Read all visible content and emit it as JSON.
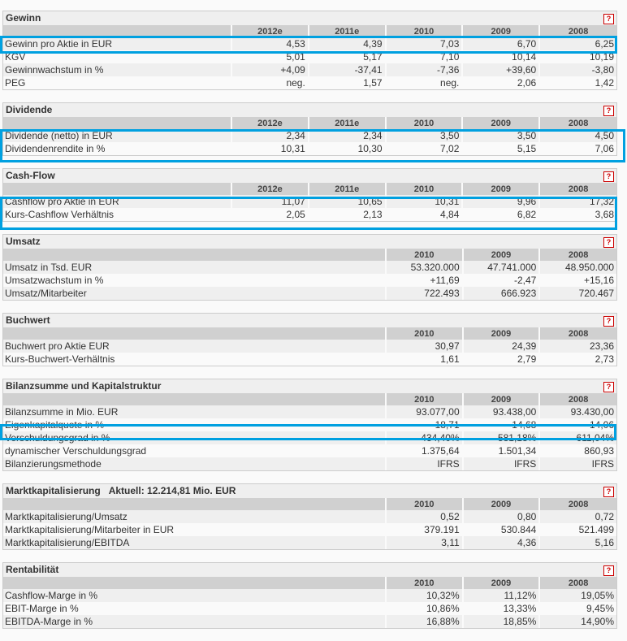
{
  "accent": "#00a0e0",
  "help_label": "?",
  "sections": [
    {
      "title": "Gewinn",
      "years": [
        "2012e",
        "2011e",
        "2010",
        "2009",
        "2008"
      ],
      "rows": [
        [
          "Gewinn pro Aktie in EUR",
          "4,53",
          "4,39",
          "7,03",
          "6,70",
          "6,25"
        ],
        [
          "KGV",
          "5,01",
          "5,17",
          "7,10",
          "10,14",
          "10,19"
        ],
        [
          "Gewinnwachstum in %",
          "+4,09",
          "-37,41",
          "-7,36",
          "+39,60",
          "-3,80"
        ],
        [
          "PEG",
          "neg.",
          "1,57",
          "neg.",
          "2,06",
          "1,42"
        ]
      ]
    },
    {
      "title": "Dividende",
      "years": [
        "2012e",
        "2011e",
        "2010",
        "2009",
        "2008"
      ],
      "rows": [
        [
          "Dividende (netto) in EUR",
          "2,34",
          "2,34",
          "3,50",
          "3,50",
          "4,50"
        ],
        [
          "Dividendenrendite in %",
          "10,31",
          "10,30",
          "7,02",
          "5,15",
          "7,06"
        ]
      ]
    },
    {
      "title": "Cash-Flow",
      "years": [
        "2012e",
        "2011e",
        "2010",
        "2009",
        "2008"
      ],
      "rows": [
        [
          "Cashflow pro Aktie in EUR",
          "11,07",
          "10,65",
          "10,31",
          "9,96",
          "17,32"
        ],
        [
          "Kurs-Cashflow Verhältnis",
          "2,05",
          "2,13",
          "4,84",
          "6,82",
          "3,68"
        ]
      ]
    },
    {
      "title": "Umsatz",
      "years": [
        "2010",
        "2009",
        "2008"
      ],
      "rows": [
        [
          "Umsatz in Tsd. EUR",
          "53.320.000",
          "47.741.000",
          "48.950.000"
        ],
        [
          "Umsatzwachstum in %",
          "+11,69",
          "-2,47",
          "+15,16"
        ],
        [
          "Umsatz/Mitarbeiter",
          "722.493",
          "666.923",
          "720.467"
        ]
      ]
    },
    {
      "title": "Buchwert",
      "years": [
        "2010",
        "2009",
        "2008"
      ],
      "rows": [
        [
          "Buchwert pro Aktie EUR",
          "30,97",
          "24,39",
          "23,36"
        ],
        [
          "Kurs-Buchwert-Verhältnis",
          "1,61",
          "2,79",
          "2,73"
        ]
      ]
    },
    {
      "title": "Bilanzsumme und Kapitalstruktur",
      "years": [
        "2010",
        "2009",
        "2008"
      ],
      "rows": [
        [
          "Bilanzsumme in Mio. EUR",
          "93.077,00",
          "93.438,00",
          "93.430,00"
        ],
        [
          "Eigenkapitalquote in %",
          "18,71",
          "14,68",
          "14,06"
        ],
        [
          "Verschuldungsgrad in %",
          "434,40%",
          "581,18%",
          "611,04%"
        ],
        [
          "dynamischer Verschuldungsgrad",
          "1.375,64",
          "1.501,34",
          "860,93"
        ],
        [
          "Bilanzierungsmethode",
          "IFRS",
          "IFRS",
          "IFRS"
        ]
      ]
    },
    {
      "title": "Marktkapitalisierung",
      "extra": "Aktuell: 12.214,81 Mio. EUR",
      "years": [
        "2010",
        "2009",
        "2008"
      ],
      "rows": [
        [
          "Marktkapitalisierung/Umsatz",
          "0,52",
          "0,80",
          "0,72"
        ],
        [
          "Marktkapitalisierung/Mitarbeiter in EUR",
          "379.191",
          "530.844",
          "521.499"
        ],
        [
          "Marktkapitalisierung/EBITDA",
          "3,11",
          "4,36",
          "5,16"
        ]
      ]
    },
    {
      "title": "Rentabilität",
      "years": [
        "2010",
        "2009",
        "2008"
      ],
      "rows": [
        [
          "Cashflow-Marge in %",
          "10,32%",
          "11,12%",
          "19,05%"
        ],
        [
          "EBIT-Marge in %",
          "10,86%",
          "13,33%",
          "9,45%"
        ],
        [
          "EBITDA-Marge in %",
          "16,88%",
          "18,85%",
          "14,90%"
        ]
      ]
    }
  ]
}
